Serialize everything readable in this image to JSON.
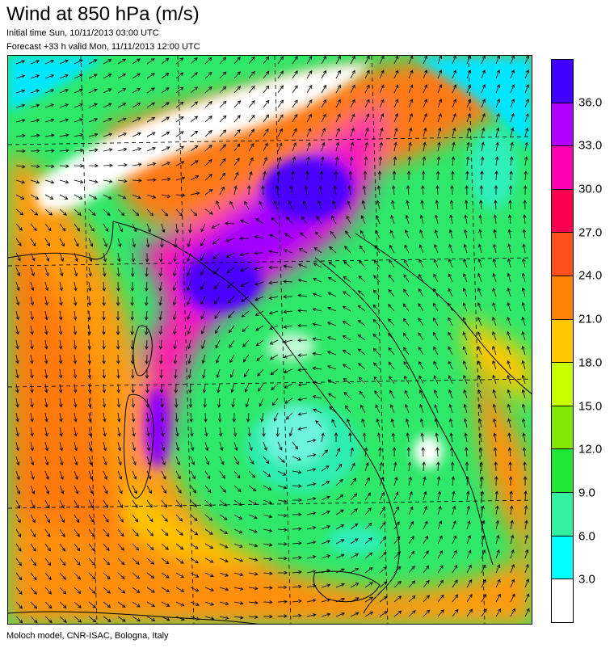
{
  "header": {
    "title": "Wind at 850 hPa (m/s)",
    "initial_time": "Initial time  Sun, 10/11/2013 03:00 UTC",
    "forecast": "Forecast +33 h valid  Mon, 11/11/2013 12:00 UTC"
  },
  "footer": {
    "credit": "Moloch model, CNR-ISAC, Bologna, Italy"
  },
  "colorbar": {
    "colors_top_to_bottom": [
      "#3f00ff",
      "#b400ff",
      "#ff00b4",
      "#ff0050",
      "#ff501e",
      "#ff8200",
      "#ffc800",
      "#c8ff00",
      "#82e600",
      "#1ee632",
      "#32f0a0",
      "#00ffff",
      "#ffffff"
    ],
    "labels_top_to_bottom": [
      "36.0",
      "33.0",
      "30.0",
      "27.0",
      "24.0",
      "21.0",
      "18.0",
      "15.0",
      "12.0",
      "9.0",
      "6.0",
      "3.0"
    ]
  },
  "map": {
    "colors": {
      "background": "#2ee86a",
      "coastline": "#000000",
      "arrow": "#000000",
      "graticule": "#000000"
    }
  }
}
